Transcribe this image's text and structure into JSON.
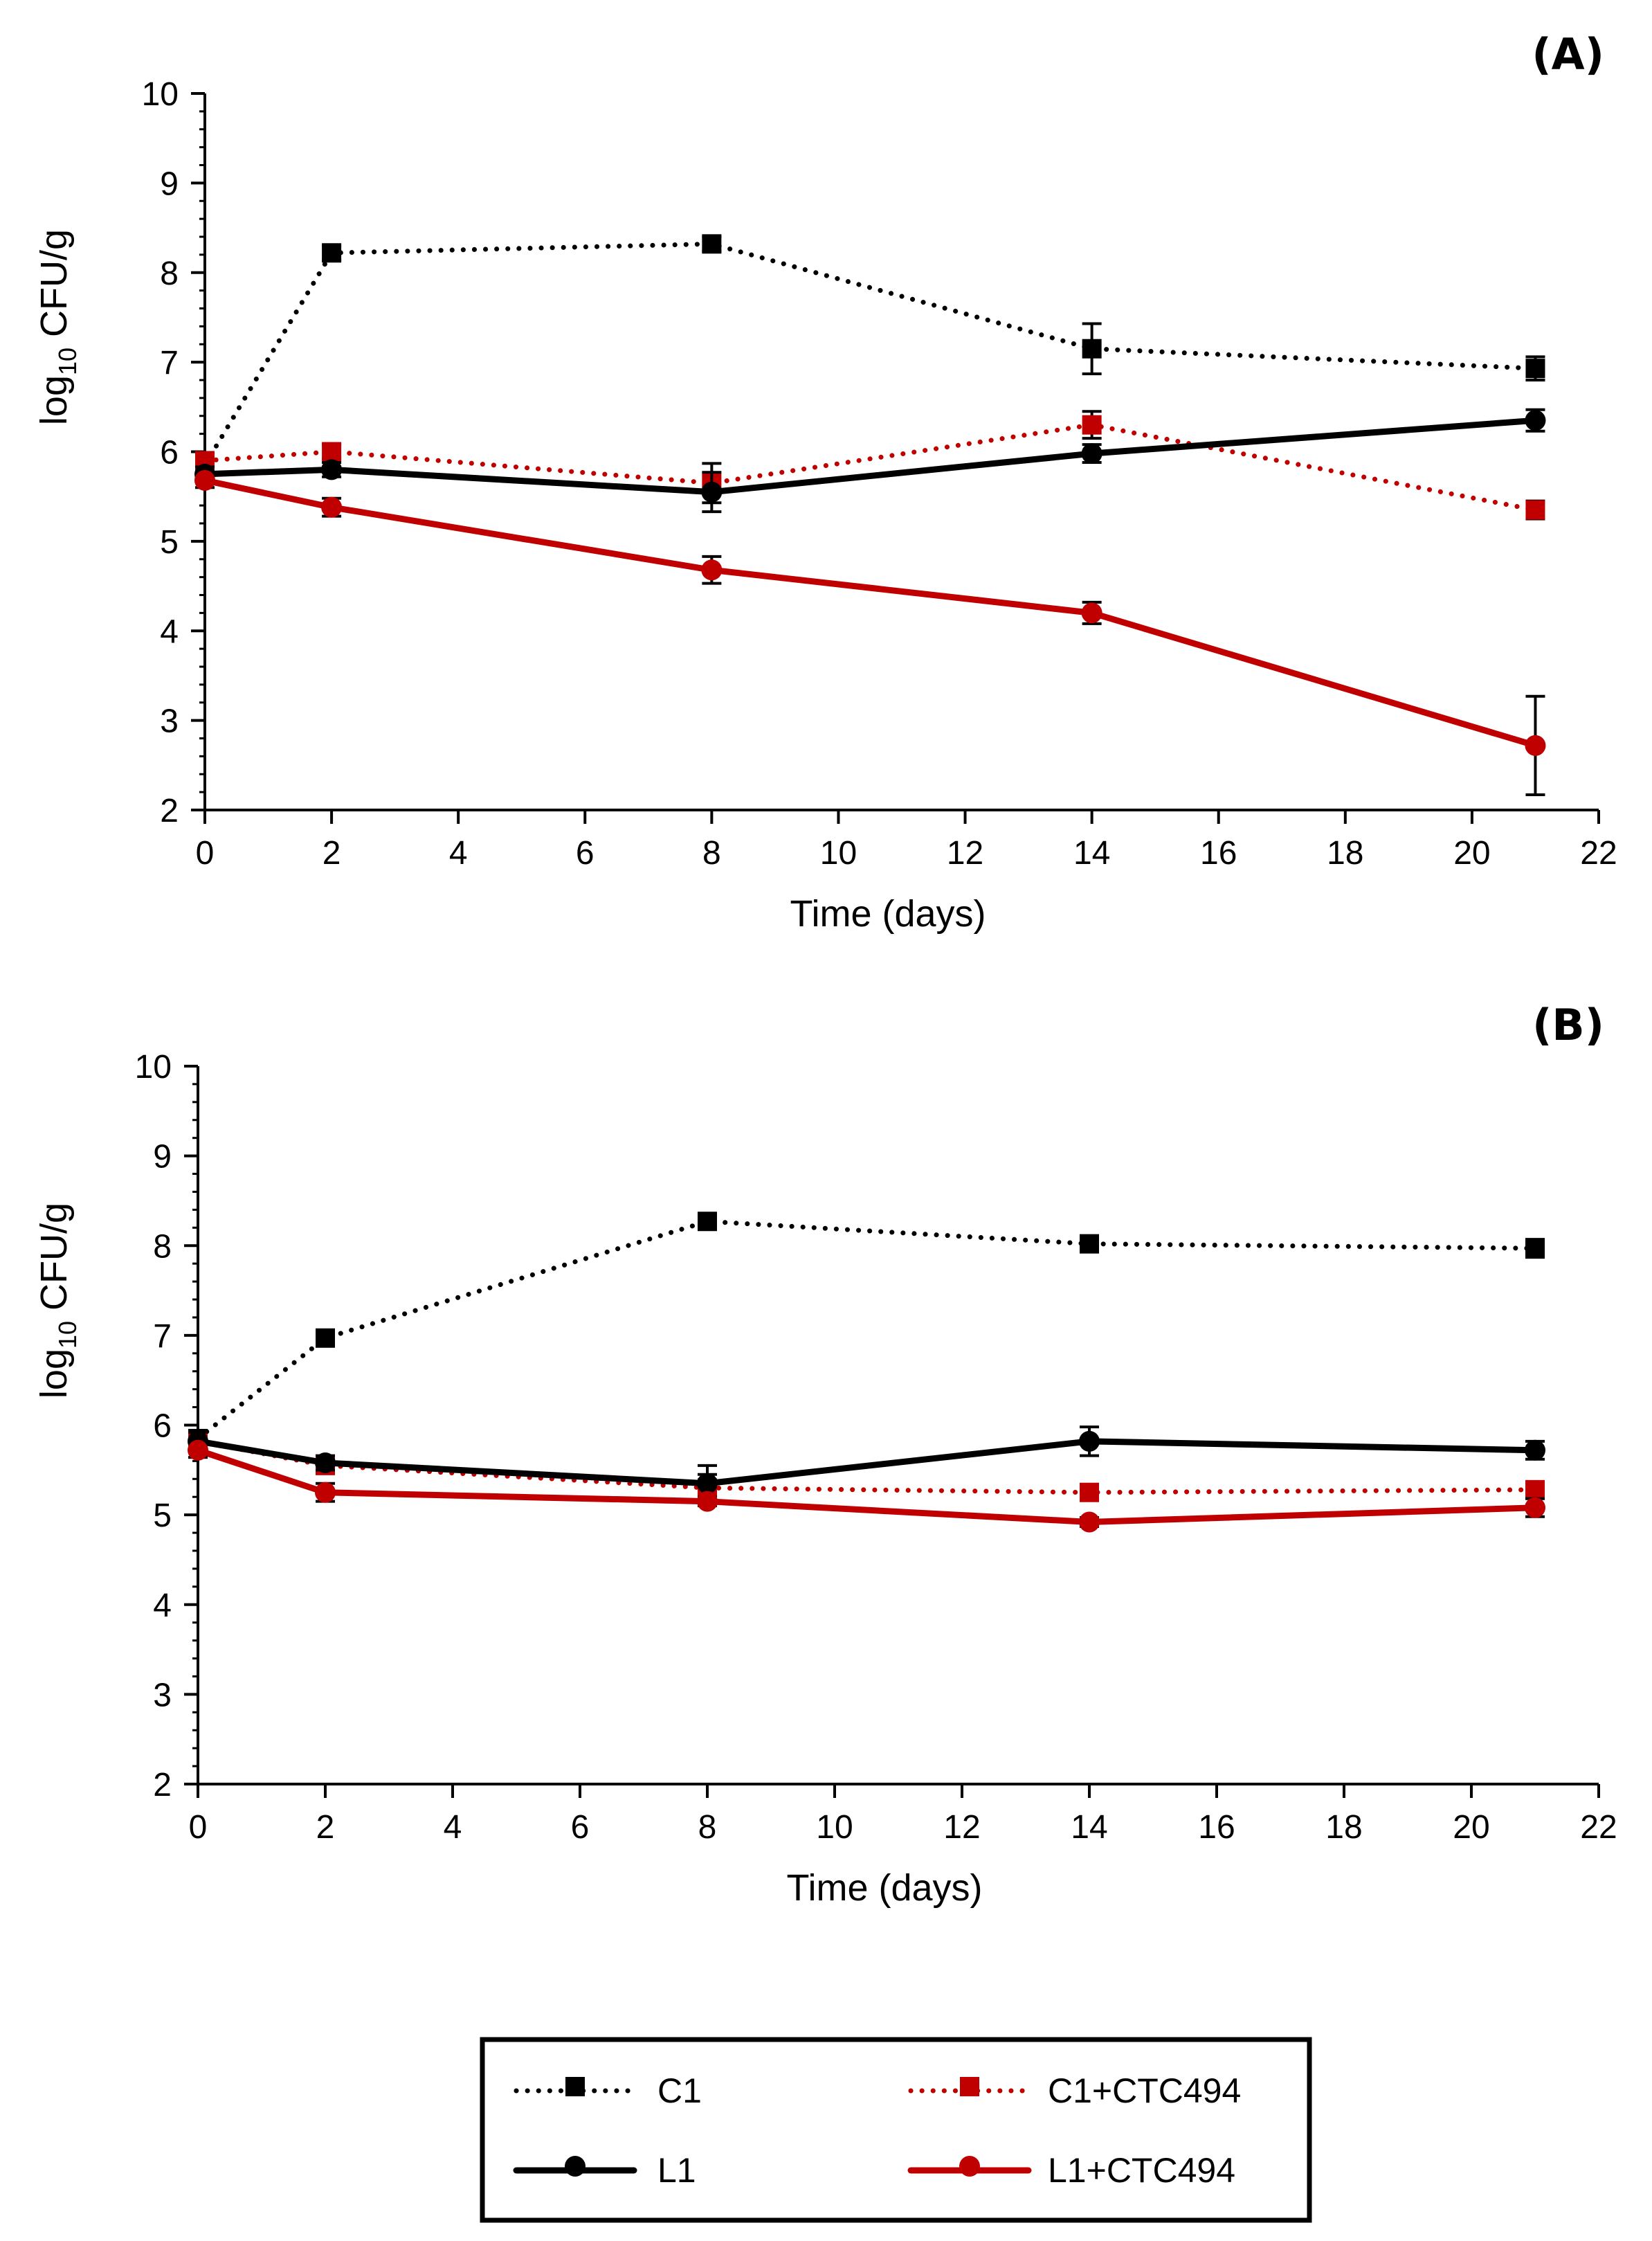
{
  "chart_data": [
    {
      "type": "line",
      "panel_label": "(A)",
      "xlabel": "Time (days)",
      "ylabel_main": "log",
      "ylabel_sub": "10",
      "ylabel_rest": " CFU/g",
      "xlim": [
        0,
        22
      ],
      "ylim": [
        2,
        10
      ],
      "xticks": [
        0,
        2,
        4,
        6,
        8,
        10,
        12,
        14,
        16,
        18,
        20,
        22
      ],
      "yticks": [
        2,
        3,
        4,
        5,
        6,
        7,
        8,
        9,
        10
      ],
      "x": [
        0,
        2,
        8,
        14,
        21
      ],
      "series": [
        {
          "name": "C1",
          "color": "#000000",
          "style": "dotted",
          "marker": "square",
          "values": [
            5.85,
            8.22,
            8.32,
            7.15,
            6.93
          ],
          "errors": [
            0.08,
            0.08,
            0.08,
            0.28,
            0.13
          ]
        },
        {
          "name": "C1+CTC494",
          "color": "#c00000",
          "style": "dotted",
          "marker": "square",
          "values": [
            5.9,
            6.0,
            5.65,
            6.3,
            5.35
          ],
          "errors": [
            0.08,
            0.08,
            0.22,
            0.15,
            0.1
          ]
        },
        {
          "name": "L1",
          "color": "#000000",
          "style": "solid",
          "marker": "circle",
          "values": [
            5.75,
            5.8,
            5.55,
            5.98,
            6.35
          ],
          "errors": [
            0.08,
            0.08,
            0.22,
            0.1,
            0.12
          ]
        },
        {
          "name": "L1+CTC494",
          "color": "#c00000",
          "style": "solid",
          "marker": "circle",
          "values": [
            5.68,
            5.38,
            4.68,
            4.2,
            2.72
          ],
          "errors": [
            0.08,
            0.1,
            0.15,
            0.12,
            0.55
          ]
        }
      ]
    },
    {
      "type": "line",
      "panel_label": "(B)",
      "xlabel": "Time (days)",
      "ylabel_main": "log",
      "ylabel_sub": "10",
      "ylabel_rest": " CFU/g",
      "xlim": [
        0,
        22
      ],
      "ylim": [
        2,
        10
      ],
      "xticks": [
        0,
        2,
        4,
        6,
        8,
        10,
        12,
        14,
        16,
        18,
        20,
        22
      ],
      "yticks": [
        2,
        3,
        4,
        5,
        6,
        7,
        8,
        9,
        10
      ],
      "x": [
        0,
        2,
        8,
        14,
        21
      ],
      "series": [
        {
          "name": "C1",
          "color": "#000000",
          "style": "dotted",
          "marker": "square",
          "values": [
            5.85,
            6.97,
            8.27,
            8.02,
            7.97
          ],
          "errors": [
            0.08,
            0.06,
            0.06,
            0.08,
            0.1
          ]
        },
        {
          "name": "C1+CTC494",
          "color": "#c00000",
          "style": "dotted",
          "marker": "square",
          "values": [
            5.82,
            5.55,
            5.3,
            5.25,
            5.28
          ],
          "errors": [
            0.08,
            0.08,
            0.15,
            0.05,
            0.08
          ]
        },
        {
          "name": "L1",
          "color": "#000000",
          "style": "solid",
          "marker": "circle",
          "values": [
            5.82,
            5.58,
            5.35,
            5.82,
            5.72
          ],
          "errors": [
            0.1,
            0.08,
            0.2,
            0.16,
            0.1
          ]
        },
        {
          "name": "L1+CTC494",
          "color": "#c00000",
          "style": "solid",
          "marker": "circle",
          "values": [
            5.72,
            5.25,
            5.15,
            4.92,
            5.08
          ],
          "errors": [
            0.08,
            0.1,
            0.05,
            0.05,
            0.1
          ]
        }
      ]
    }
  ],
  "legend": {
    "items": [
      {
        "label": "C1",
        "color": "#000000",
        "style": "dotted",
        "marker": "square"
      },
      {
        "label": "C1+CTC494",
        "color": "#c00000",
        "style": "dotted",
        "marker": "square"
      },
      {
        "label": "L1",
        "color": "#000000",
        "style": "solid",
        "marker": "circle"
      },
      {
        "label": "L1+CTC494",
        "color": "#c00000",
        "style": "solid",
        "marker": "circle"
      }
    ]
  }
}
